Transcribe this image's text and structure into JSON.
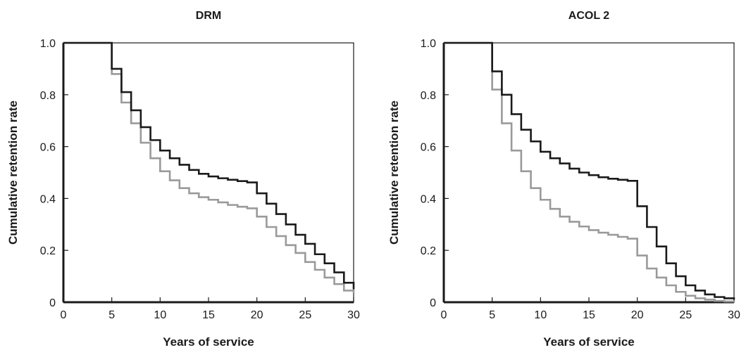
{
  "chart_data": [
    {
      "type": "line",
      "step": true,
      "title": "DRM",
      "xlabel": "Years of service",
      "ylabel": "Cumulative retention rate",
      "xlim": [
        0,
        30
      ],
      "ylim": [
        0,
        1.0
      ],
      "xticks": [
        0,
        5,
        10,
        15,
        20,
        25,
        30
      ],
      "xtick_labels": [
        "0",
        "5",
        "10",
        "15",
        "20",
        "25",
        "30"
      ],
      "yticks": [
        0,
        0.2,
        0.4,
        0.6,
        0.8,
        1.0
      ],
      "ytick_labels": [
        "0",
        "0.2",
        "0.4",
        "0.6",
        "0.8",
        "1.0"
      ],
      "grid": false,
      "series": [
        {
          "color": "#1a1a1a",
          "x": [
            0,
            1,
            5,
            6,
            7,
            8,
            9,
            10,
            11,
            12,
            13,
            14,
            15,
            16,
            17,
            18,
            19,
            20,
            21,
            22,
            23,
            24,
            25,
            26,
            27,
            28,
            29,
            30
          ],
          "y": [
            1.0,
            1.0,
            0.9,
            0.81,
            0.74,
            0.675,
            0.625,
            0.585,
            0.555,
            0.53,
            0.51,
            0.495,
            0.485,
            0.478,
            0.472,
            0.467,
            0.462,
            0.42,
            0.38,
            0.34,
            0.3,
            0.26,
            0.225,
            0.185,
            0.15,
            0.115,
            0.075,
            0.05
          ]
        },
        {
          "color": "#9a9a9a",
          "x": [
            0,
            1,
            5,
            6,
            7,
            8,
            9,
            10,
            11,
            12,
            13,
            14,
            15,
            16,
            17,
            18,
            19,
            20,
            21,
            22,
            23,
            24,
            25,
            26,
            27,
            28,
            29,
            30
          ],
          "y": [
            1.0,
            1.0,
            0.88,
            0.77,
            0.69,
            0.615,
            0.555,
            0.505,
            0.47,
            0.44,
            0.42,
            0.405,
            0.395,
            0.385,
            0.375,
            0.368,
            0.362,
            0.33,
            0.29,
            0.255,
            0.22,
            0.19,
            0.155,
            0.125,
            0.095,
            0.07,
            0.045,
            0.035
          ]
        }
      ]
    },
    {
      "type": "line",
      "step": true,
      "title": "ACOL 2",
      "xlabel": "Years of service",
      "ylabel": "Cumulative retention rate",
      "xlim": [
        0,
        30
      ],
      "ylim": [
        0,
        1.0
      ],
      "xticks": [
        0,
        5,
        10,
        15,
        20,
        25,
        30
      ],
      "xtick_labels": [
        "0",
        "5",
        "10",
        "15",
        "20",
        "25",
        "30"
      ],
      "yticks": [
        0,
        0.2,
        0.4,
        0.6,
        0.8,
        1.0
      ],
      "ytick_labels": [
        "0",
        "0.2",
        "0.4",
        "0.6",
        "0.8",
        "1.0"
      ],
      "grid": false,
      "series": [
        {
          "color": "#1a1a1a",
          "x": [
            0,
            1,
            5,
            6,
            7,
            8,
            9,
            10,
            11,
            12,
            13,
            14,
            15,
            16,
            17,
            18,
            19,
            20,
            21,
            22,
            23,
            24,
            25,
            26,
            27,
            28,
            29,
            30
          ],
          "y": [
            1.0,
            1.0,
            0.89,
            0.8,
            0.725,
            0.665,
            0.62,
            0.58,
            0.555,
            0.535,
            0.515,
            0.5,
            0.49,
            0.482,
            0.476,
            0.472,
            0.468,
            0.37,
            0.29,
            0.215,
            0.15,
            0.1,
            0.065,
            0.045,
            0.03,
            0.02,
            0.015,
            0.01
          ]
        },
        {
          "color": "#9a9a9a",
          "x": [
            0,
            1,
            5,
            6,
            7,
            8,
            9,
            10,
            11,
            12,
            13,
            14,
            15,
            16,
            17,
            18,
            19,
            20,
            21,
            22,
            23,
            24,
            25,
            26,
            27,
            28,
            29,
            30
          ],
          "y": [
            1.0,
            1.0,
            0.82,
            0.69,
            0.585,
            0.505,
            0.44,
            0.395,
            0.36,
            0.33,
            0.31,
            0.292,
            0.278,
            0.268,
            0.26,
            0.252,
            0.245,
            0.18,
            0.13,
            0.095,
            0.065,
            0.04,
            0.025,
            0.015,
            0.01,
            0.005,
            0.003,
            0.0
          ]
        }
      ]
    }
  ]
}
